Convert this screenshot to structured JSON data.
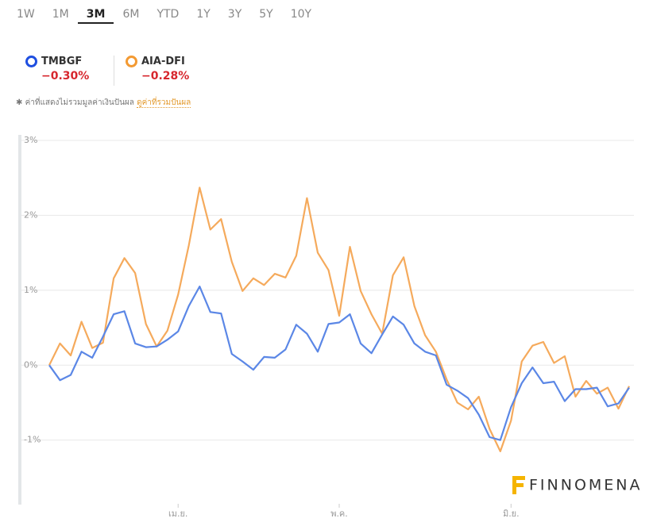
{
  "tabs": {
    "items": [
      "1W",
      "1M",
      "3M",
      "6M",
      "YTD",
      "1Y",
      "3Y",
      "5Y",
      "10Y"
    ],
    "selected": 2
  },
  "note": {
    "text": "ค่าที่แสดงไม่รวมมูลค่าเงินปันผล",
    "link": "ดูค่าที่รวมปันผล"
  },
  "watermark": "FINNOMENA",
  "chart_data": {
    "type": "line",
    "categories": [
      null,
      null,
      null,
      null,
      null,
      null,
      null,
      null,
      null,
      null,
      null,
      null,
      "เม.ย.",
      null,
      null,
      null,
      null,
      null,
      null,
      null,
      null,
      null,
      null,
      null,
      null,
      null,
      null,
      "พ.ค.",
      null,
      null,
      null,
      null,
      null,
      null,
      null,
      null,
      null,
      null,
      null,
      null,
      null,
      null,
      null,
      "มิ.ย.",
      null,
      null,
      null,
      null,
      null,
      null,
      null,
      null,
      null,
      null,
      null
    ],
    "series": [
      {
        "name": "TMBGF",
        "color": "#5b87e6",
        "legend_color": "#1f4fe0",
        "change": "−0.30%",
        "values": [
          0,
          -0.2,
          -0.13,
          0.18,
          0.1,
          0.38,
          0.68,
          0.72,
          0.29,
          0.24,
          0.25,
          0.34,
          0.45,
          0.79,
          1.05,
          0.71,
          0.69,
          0.15,
          0.05,
          -0.06,
          0.11,
          0.1,
          0.21,
          0.54,
          0.42,
          0.18,
          0.55,
          0.57,
          0.68,
          0.29,
          0.16,
          0.41,
          0.65,
          0.54,
          0.29,
          0.18,
          0.13,
          -0.26,
          -0.34,
          -0.44,
          -0.66,
          -0.96,
          -1.0,
          -0.56,
          -0.24,
          -0.03,
          -0.24,
          -0.22,
          -0.48,
          -0.32,
          -0.32,
          -0.3,
          -0.55,
          -0.51,
          -0.3
        ]
      },
      {
        "name": "AIA-DFI",
        "color": "#f5aa5c",
        "legend_color": "#f39a33",
        "change": "−0.28%",
        "values": [
          0,
          0.29,
          0.13,
          0.58,
          0.23,
          0.3,
          1.16,
          1.43,
          1.23,
          0.55,
          0.25,
          0.46,
          0.94,
          1.6,
          2.37,
          1.81,
          1.95,
          1.38,
          0.99,
          1.16,
          1.07,
          1.22,
          1.17,
          1.46,
          2.23,
          1.5,
          1.27,
          0.66,
          1.58,
          0.99,
          0.68,
          0.42,
          1.2,
          1.44,
          0.79,
          0.4,
          0.18,
          -0.19,
          -0.5,
          -0.59,
          -0.42,
          -0.85,
          -1.15,
          -0.74,
          0.05,
          0.26,
          0.31,
          0.03,
          0.12,
          -0.42,
          -0.21,
          -0.38,
          -0.3,
          -0.58,
          -0.28
        ]
      }
    ],
    "ylim": [
      -1.85,
      3
    ],
    "yticks": [
      {
        "value": -1,
        "label": "-1%"
      },
      {
        "value": 0,
        "label": "0%"
      },
      {
        "value": 1,
        "label": "1%"
      },
      {
        "value": 2,
        "label": "2%"
      },
      {
        "value": 3,
        "label": "3%"
      }
    ],
    "grid": true
  }
}
